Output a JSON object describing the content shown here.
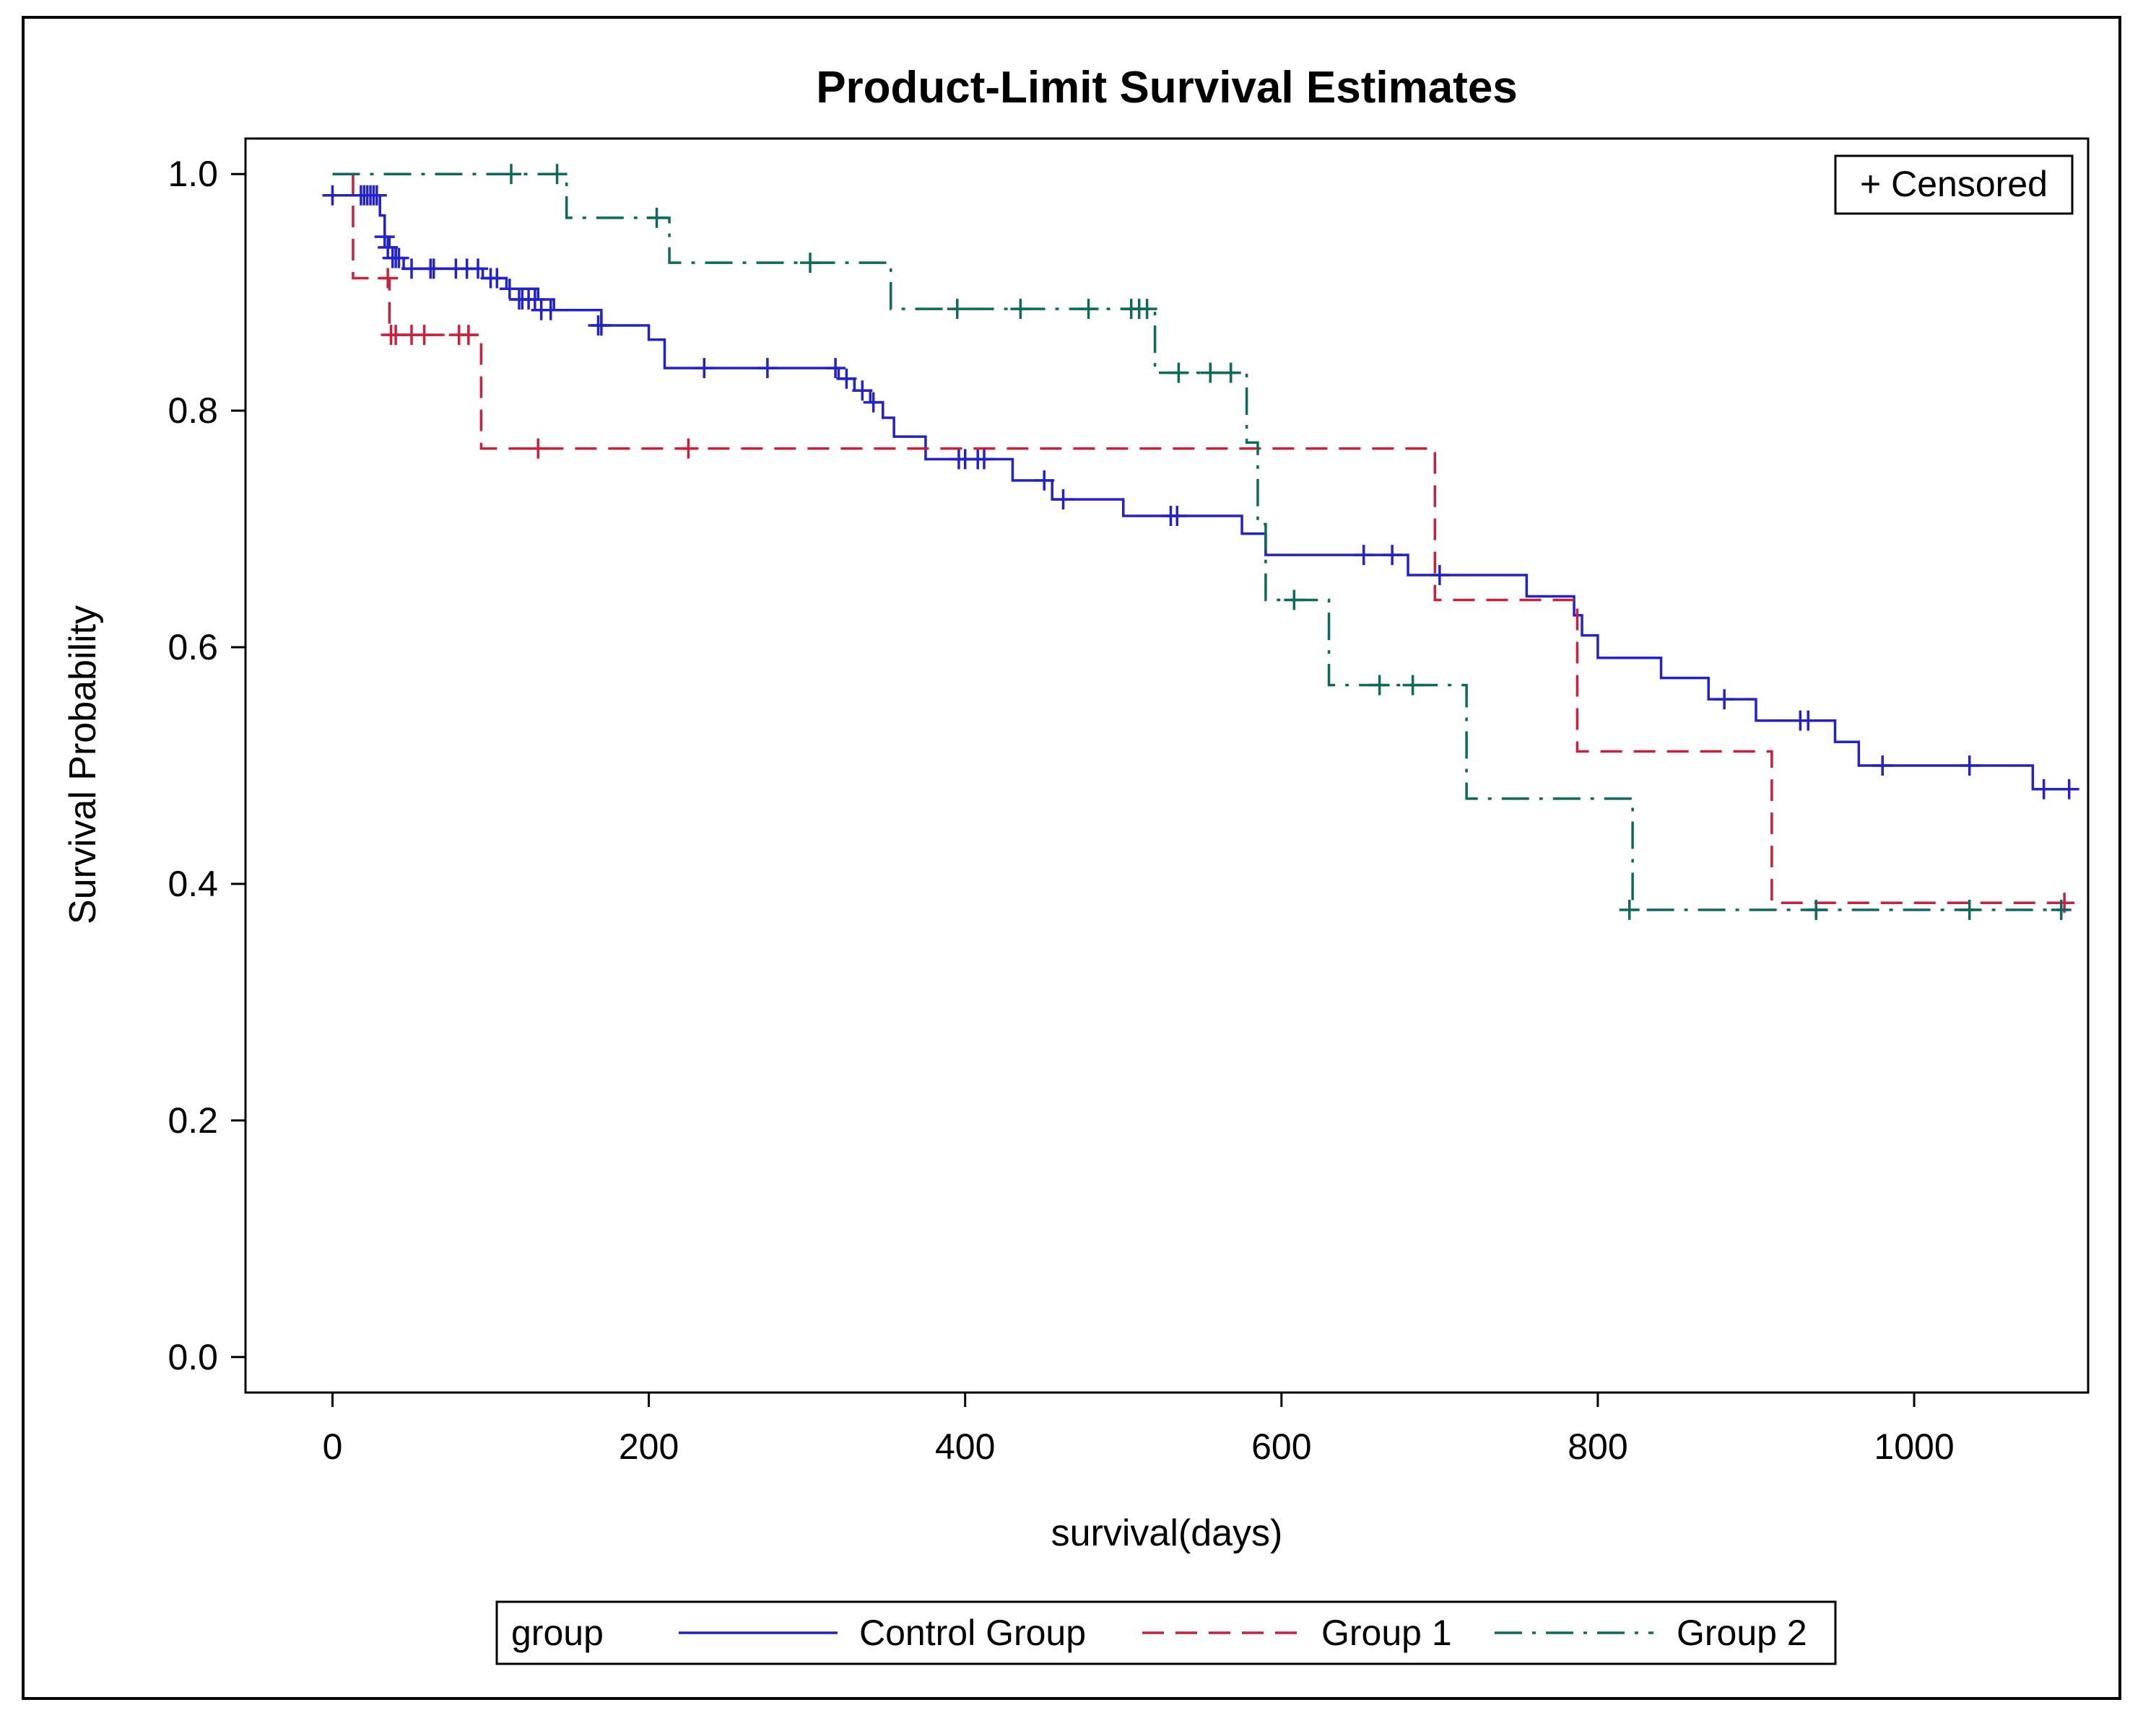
{
  "chart_data": {
    "type": "line",
    "subtype": "step",
    "title": "Product-Limit Survival Estimates",
    "xlabel": "survival(days)",
    "ylabel": "Survival Probability",
    "xlim": [
      -55,
      1110
    ],
    "ylim": [
      -0.03,
      1.03
    ],
    "xticks": [
      0,
      200,
      400,
      600,
      800,
      1000
    ],
    "yticks": [
      0.0,
      0.2,
      0.4,
      0.6,
      0.8,
      1.0
    ],
    "xtick_labels": [
      "0",
      "200",
      "400",
      "600",
      "800",
      "1000"
    ],
    "ytick_labels": [
      "0.0",
      "0.2",
      "0.4",
      "0.6",
      "0.8",
      "1.0"
    ],
    "grid": false,
    "censor_legend": "+ Censored",
    "legend_title": "group",
    "legend_position": "bottom",
    "series": [
      {
        "name": "Control Group",
        "color": "#2222cc",
        "dash": "none",
        "steps": [
          [
            0,
            0.982
          ],
          [
            30,
            0.965
          ],
          [
            33,
            0.947
          ],
          [
            36,
            0.938
          ],
          [
            40,
            0.929
          ],
          [
            45,
            0.92
          ],
          [
            95,
            0.912
          ],
          [
            110,
            0.903
          ],
          [
            130,
            0.894
          ],
          [
            140,
            0.885
          ],
          [
            170,
            0.872
          ],
          [
            200,
            0.86
          ],
          [
            210,
            0.836
          ],
          [
            320,
            0.827
          ],
          [
            330,
            0.817
          ],
          [
            340,
            0.807
          ],
          [
            348,
            0.794
          ],
          [
            355,
            0.778
          ],
          [
            375,
            0.759
          ],
          [
            430,
            0.741
          ],
          [
            455,
            0.725
          ],
          [
            500,
            0.711
          ],
          [
            575,
            0.696
          ],
          [
            590,
            0.678
          ],
          [
            680,
            0.661
          ],
          [
            755,
            0.643
          ],
          [
            785,
            0.627
          ],
          [
            790,
            0.61
          ],
          [
            800,
            0.591
          ],
          [
            840,
            0.574
          ],
          [
            870,
            0.556
          ],
          [
            900,
            0.538
          ],
          [
            950,
            0.52
          ],
          [
            965,
            0.5
          ],
          [
            1075,
            0.48
          ],
          [
            1097,
            0.48
          ]
        ],
        "censored": [
          [
            0,
            0.982
          ],
          [
            18,
            0.982
          ],
          [
            20,
            0.982
          ],
          [
            22,
            0.982
          ],
          [
            24,
            0.982
          ],
          [
            26,
            0.982
          ],
          [
            28,
            0.982
          ],
          [
            33,
            0.947
          ],
          [
            35,
            0.938
          ],
          [
            38,
            0.929
          ],
          [
            40,
            0.929
          ],
          [
            42,
            0.929
          ],
          [
            50,
            0.92
          ],
          [
            62,
            0.92
          ],
          [
            64,
            0.92
          ],
          [
            78,
            0.92
          ],
          [
            85,
            0.92
          ],
          [
            92,
            0.92
          ],
          [
            100,
            0.912
          ],
          [
            104,
            0.912
          ],
          [
            112,
            0.903
          ],
          [
            118,
            0.894
          ],
          [
            120,
            0.894
          ],
          [
            124,
            0.894
          ],
          [
            128,
            0.894
          ],
          [
            132,
            0.885
          ],
          [
            138,
            0.885
          ],
          [
            168,
            0.872
          ],
          [
            170,
            0.872
          ],
          [
            235,
            0.836
          ],
          [
            275,
            0.836
          ],
          [
            318,
            0.836
          ],
          [
            325,
            0.827
          ],
          [
            335,
            0.817
          ],
          [
            342,
            0.807
          ],
          [
            396,
            0.759
          ],
          [
            400,
            0.759
          ],
          [
            408,
            0.759
          ],
          [
            412,
            0.759
          ],
          [
            450,
            0.741
          ],
          [
            462,
            0.725
          ],
          [
            530,
            0.711
          ],
          [
            534,
            0.711
          ],
          [
            652,
            0.678
          ],
          [
            670,
            0.678
          ],
          [
            700,
            0.661
          ],
          [
            880,
            0.556
          ],
          [
            928,
            0.538
          ],
          [
            933,
            0.538
          ],
          [
            980,
            0.5
          ],
          [
            1035,
            0.5
          ],
          [
            1082,
            0.48
          ],
          [
            1098,
            0.48
          ]
        ]
      },
      {
        "name": "Group 1",
        "color": "#cc1f3a",
        "dash": "30,16",
        "steps": [
          [
            12,
            1.0
          ],
          [
            13,
            0.912
          ],
          [
            36,
            0.864
          ],
          [
            94,
            0.768
          ],
          [
            697,
            0.64
          ],
          [
            787,
            0.512
          ],
          [
            910,
            0.384
          ],
          [
            1097,
            0.384
          ]
        ],
        "censored": [
          [
            35,
            0.912
          ],
          [
            37,
            0.864
          ],
          [
            40,
            0.864
          ],
          [
            50,
            0.864
          ],
          [
            58,
            0.864
          ],
          [
            80,
            0.864
          ],
          [
            86,
            0.864
          ],
          [
            130,
            0.768
          ],
          [
            225,
            0.768
          ],
          [
            1095,
            0.384
          ]
        ]
      },
      {
        "name": "Group 2",
        "color": "#0b6b5a",
        "dash": "38,14,5,14",
        "steps": [
          [
            0,
            1.0
          ],
          [
            148,
            0.963
          ],
          [
            213,
            0.925
          ],
          [
            353,
            0.886
          ],
          [
            520,
            0.832
          ],
          [
            578,
            0.773
          ],
          [
            585,
            0.704
          ],
          [
            590,
            0.64
          ],
          [
            630,
            0.568
          ],
          [
            717,
            0.472
          ],
          [
            822,
            0.378
          ],
          [
            1097,
            0.378
          ]
        ],
        "censored": [
          [
            113,
            1.0
          ],
          [
            142,
            1.0
          ],
          [
            205,
            0.963
          ],
          [
            302,
            0.925
          ],
          [
            395,
            0.886
          ],
          [
            435,
            0.886
          ],
          [
            478,
            0.886
          ],
          [
            505,
            0.886
          ],
          [
            510,
            0.886
          ],
          [
            515,
            0.886
          ],
          [
            535,
            0.832
          ],
          [
            555,
            0.832
          ],
          [
            568,
            0.832
          ],
          [
            608,
            0.64
          ],
          [
            662,
            0.568
          ],
          [
            683,
            0.568
          ],
          [
            820,
            0.378
          ],
          [
            938,
            0.378
          ],
          [
            1035,
            0.378
          ],
          [
            1093,
            0.378
          ]
        ]
      }
    ]
  }
}
